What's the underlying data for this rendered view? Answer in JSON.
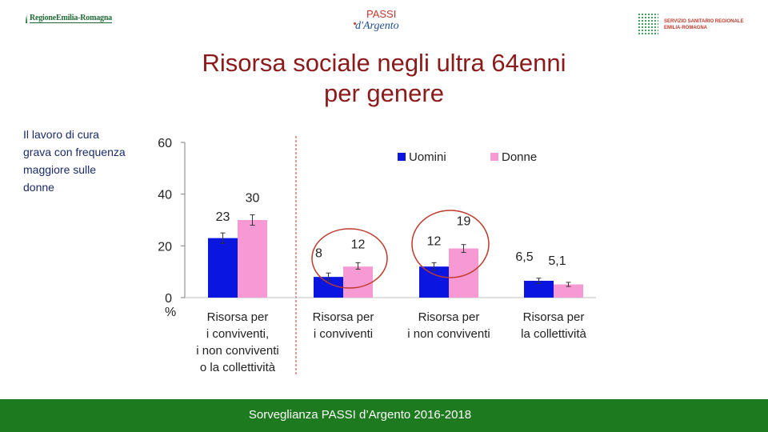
{
  "header": {
    "logo_left": "RegioneEmilia-Romagna",
    "logo_center_top": "PASSI",
    "logo_center_bottom": "d'Argento",
    "logo_right_line1": "SERVIZIO SANITARIO REGIONALE",
    "logo_right_line2": "EMILIA-ROMAGNA"
  },
  "title_line1": "Risorsa sociale negli ultra 64enni",
  "title_line2": "per genere",
  "side_note": "Il lavoro di cura grava con frequenza maggiore sulle donne",
  "footer": "Sorveglianza PASSI d’Argento 2016-2018",
  "colors": {
    "uomini": "#0a16e0",
    "donne": "#f79ad3",
    "title": "#8b1a1a",
    "footer_bg": "#1e7a1e",
    "circle": "#c0392b"
  },
  "chart_data": {
    "type": "bar",
    "ylabel": "%",
    "ylim": [
      0,
      60
    ],
    "yticks": [
      "0",
      "20",
      "40",
      "60"
    ],
    "legend_position": "top-right",
    "categories": [
      [
        "Risorsa per",
        "i conviventi,",
        "i non conviventi",
        "o la collettività"
      ],
      [
        "Risorsa per",
        "i conviventi"
      ],
      [
        "Risorsa per",
        "i non conviventi"
      ],
      [
        "Risorsa per",
        "la collettività"
      ]
    ],
    "series": [
      {
        "name": "Uomini",
        "values": [
          23,
          8,
          12,
          6.5
        ],
        "labels": [
          "23",
          "8",
          "12",
          "6,5"
        ],
        "err_low": [
          21,
          6.5,
          10.5,
          5.5
        ],
        "err_high": [
          25,
          9.5,
          13.5,
          7.5
        ]
      },
      {
        "name": "Donne",
        "values": [
          30,
          12,
          19,
          5.1
        ],
        "labels": [
          "30",
          "12",
          "19",
          "5,1"
        ],
        "err_low": [
          28,
          11,
          17.5,
          4.3
        ],
        "err_high": [
          32,
          13.5,
          20.5,
          5.9
        ]
      }
    ],
    "highlighted_groups": [
      1,
      2
    ]
  }
}
